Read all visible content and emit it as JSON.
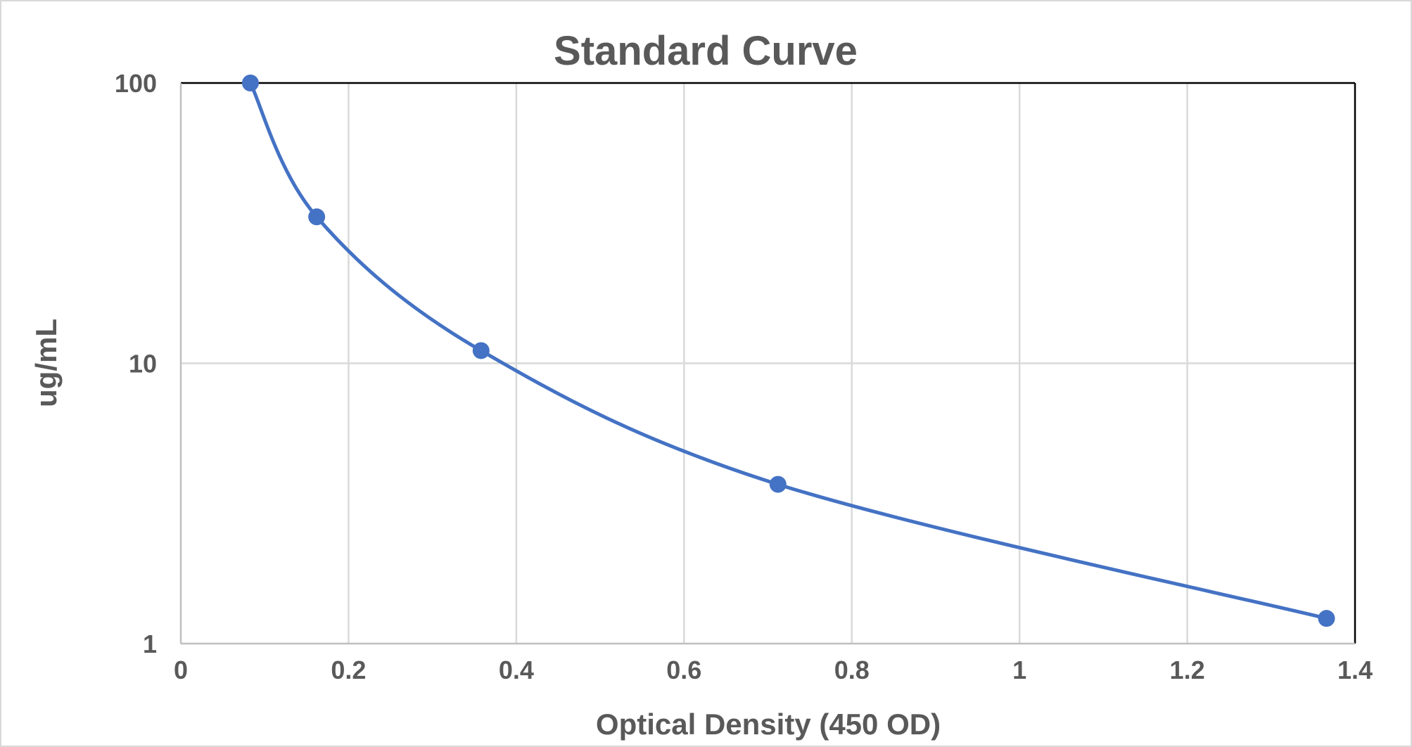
{
  "chart_data": {
    "type": "scatter",
    "title": "Standard Curve",
    "xlabel": "Optical Density (450 OD)",
    "ylabel": "ug/mL",
    "xlim": [
      0,
      1.4
    ],
    "ylim": [
      1,
      100
    ],
    "y_scale": "log",
    "grid": true,
    "legend": "none",
    "x_ticks": [
      0,
      0.2,
      0.4,
      0.6,
      0.8,
      1,
      1.2,
      1.4
    ],
    "x_tick_labels": [
      "0",
      "0.2",
      "0.4",
      "0.6",
      "0.8",
      "1",
      "1.2",
      "1.4"
    ],
    "y_ticks": [
      1,
      10,
      100
    ],
    "y_tick_labels": [
      "1",
      "10",
      "100"
    ],
    "line": "smoothed",
    "colors": {
      "series": "#4472c4",
      "grid": "#d9d9d9",
      "text": "#595959",
      "plot_border": "#000000"
    },
    "series": [
      {
        "x": [
          0.083,
          0.162,
          0.358,
          0.712,
          1.366
        ],
        "y": [
          100,
          33.3,
          11.1,
          3.7,
          1.23
        ]
      }
    ]
  }
}
